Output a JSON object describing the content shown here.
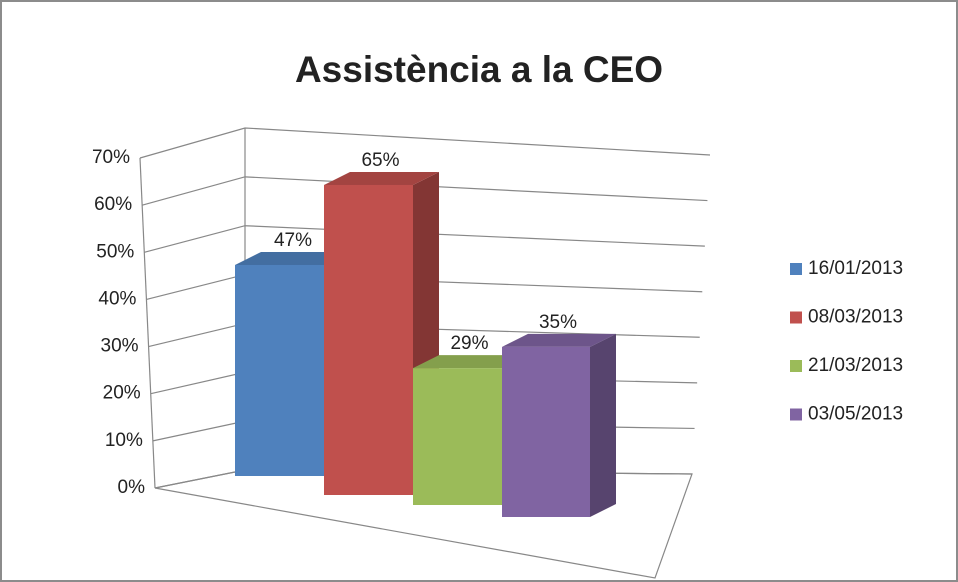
{
  "chart_data": {
    "type": "bar3d",
    "title": "Assistència a la CEO",
    "categories": [
      null
    ],
    "series": [
      {
        "name": "16/01/2013",
        "color": "#4f81bd",
        "values": [
          47
        ],
        "value_labels": [
          "47%"
        ]
      },
      {
        "name": "08/03/2013",
        "color": "#c0504d",
        "values": [
          65
        ],
        "value_labels": [
          "65%"
        ]
      },
      {
        "name": "21/03/2013",
        "color": "#9bbb59",
        "values": [
          29
        ],
        "value_labels": [
          "29%"
        ]
      },
      {
        "name": "03/05/2013",
        "color": "#8064a2",
        "values": [
          35
        ],
        "value_labels": [
          "35%"
        ]
      }
    ],
    "ylim": [
      0,
      70
    ],
    "yticks": [
      {
        "value": 0,
        "label": "0%"
      },
      {
        "value": 10,
        "label": "10%"
      },
      {
        "value": 20,
        "label": "20%"
      },
      {
        "value": 30,
        "label": "30%"
      },
      {
        "value": 40,
        "label": "40%"
      },
      {
        "value": 50,
        "label": "50%"
      },
      {
        "value": 60,
        "label": "60%"
      },
      {
        "value": 70,
        "label": "70%"
      }
    ],
    "grid": true,
    "legend": "right"
  }
}
